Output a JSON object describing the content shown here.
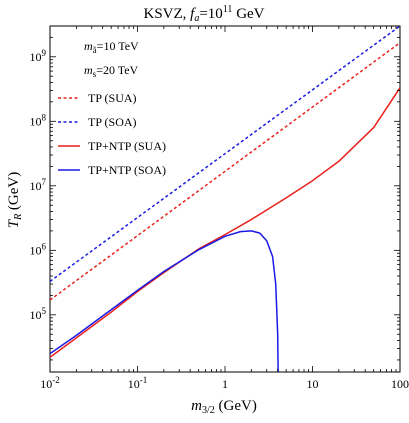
{
  "chart_data": {
    "type": "line",
    "title": {
      "prefix": "KSVZ, ",
      "fa_symbol": "f",
      "fa_sub": "a",
      "middle": "=10",
      "sup": "11",
      "suffix": " GeV"
    },
    "xlabel": {
      "main": "m",
      "sub": "3/2",
      "unit": " (GeV)"
    },
    "ylabel": {
      "main": "T",
      "sub": "R",
      "unit": " (GeV)"
    },
    "x_scale": "log",
    "y_scale": "log",
    "xlim": [
      0.01,
      100
    ],
    "ylim": [
      13000,
      3000000000
    ],
    "x_ticks": [
      {
        "value": 0.01,
        "label": "10",
        "sup": "-2"
      },
      {
        "value": 0.1,
        "label": "10",
        "sup": "-1"
      },
      {
        "value": 1,
        "label": "1",
        "sup": ""
      },
      {
        "value": 10,
        "label": "10",
        "sup": ""
      },
      {
        "value": 100,
        "label": "100",
        "sup": ""
      }
    ],
    "y_ticks": [
      {
        "value": 100000,
        "label": "10",
        "sup": "5"
      },
      {
        "value": 1000000,
        "label": "10",
        "sup": "6"
      },
      {
        "value": 10000000,
        "label": "10",
        "sup": "7"
      },
      {
        "value": 100000000,
        "label": "10",
        "sup": "8"
      },
      {
        "value": 1000000000,
        "label": "10",
        "sup": "9"
      }
    ],
    "annotations": [
      {
        "main": "m",
        "sub": "ã",
        "rest": "=10 TeV"
      },
      {
        "main": "m",
        "sub": "s",
        "rest": "=20 TeV"
      }
    ],
    "legend_position": "top-left",
    "grid": false,
    "series": [
      {
        "name": "TP (SUA)",
        "color": "#e8211b",
        "dashed": true,
        "x": [
          0.01,
          100
        ],
        "y": [
          170000,
          1650000000
        ]
      },
      {
        "name": "TP (SOA)",
        "color": "#1a1ae6",
        "dashed": true,
        "x": [
          0.01,
          100
        ],
        "y": [
          330000,
          3000000000
        ]
      },
      {
        "name": "TP+NTP (SUA)",
        "color": "#e8211b",
        "dashed": false,
        "x": [
          0.01,
          0.02,
          0.05,
          0.1,
          0.2,
          0.5,
          1,
          2,
          5,
          10,
          20,
          50,
          100
        ],
        "y": [
          22000,
          44000,
          110000,
          230000,
          450000,
          1050000,
          1750000,
          3000000,
          6500000,
          12000000,
          24000000,
          80000000,
          330000000
        ]
      },
      {
        "name": "TP+NTP (SOA)",
        "color": "#1a1ae6",
        "dashed": false,
        "x": [
          0.01,
          0.02,
          0.05,
          0.1,
          0.2,
          0.5,
          1,
          1.5,
          2,
          2.5,
          3,
          3.5,
          3.8,
          4.0,
          4.05
        ],
        "y": [
          25000,
          48000,
          120000,
          240000,
          470000,
          1020000,
          1650000,
          1950000,
          2000000,
          1850000,
          1400000,
          800000,
          300000,
          50000,
          13000
        ]
      }
    ]
  }
}
